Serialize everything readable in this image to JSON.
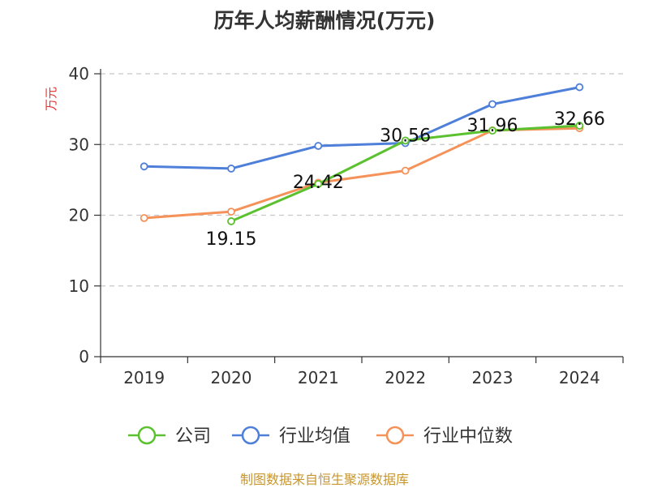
{
  "chart_data": {
    "type": "line",
    "title": "历年人均薪酬情况(万元)",
    "ylabel": "万元",
    "xlabel": "",
    "categories": [
      "2019",
      "2020",
      "2021",
      "2022",
      "2023",
      "2024"
    ],
    "ylim": [
      0,
      40
    ],
    "yticks": [
      0,
      10,
      20,
      30,
      40
    ],
    "grid": true,
    "legend_position": "bottom",
    "series": [
      {
        "name": "公司",
        "color": "#5cc12f",
        "values": [
          null,
          19.15,
          24.42,
          30.56,
          31.96,
          32.66
        ],
        "data_labels": [
          "",
          "19.15",
          "24.42",
          "30.56",
          "31.96",
          "32.66"
        ]
      },
      {
        "name": "行业均值",
        "color": "#4e7fd9",
        "values": [
          26.9,
          26.6,
          29.8,
          30.2,
          35.7,
          38.1
        ]
      },
      {
        "name": "行业中位数",
        "color": "#f5925a",
        "values": [
          19.6,
          20.5,
          24.6,
          26.3,
          32.0,
          32.3
        ]
      }
    ]
  },
  "source": "制图数据来自恒生聚源数据库"
}
